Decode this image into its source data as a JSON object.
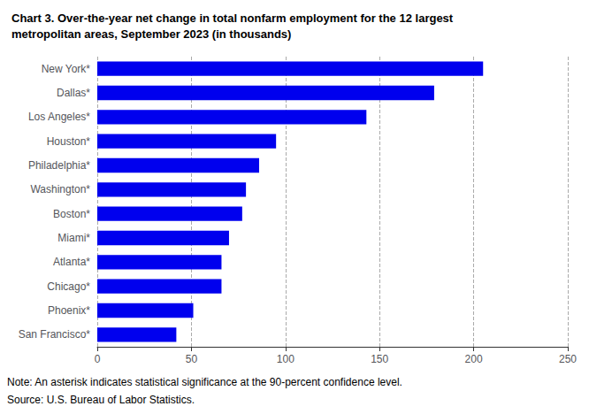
{
  "chart_data": {
    "type": "bar",
    "orientation": "horizontal",
    "title": "Chart 3. Over-the-year net change in total nonfarm employment for the 12 largest\nmetropolitan areas, September 2023 (in thousands)",
    "categories": [
      "New York*",
      "Dallas*",
      "Los Angeles*",
      "Houston*",
      "Philadelphia*",
      "Washington*",
      "Boston*",
      "Miami*",
      "Atlanta*",
      "Chicago*",
      "Phoenix*",
      "San Francisco*"
    ],
    "values": [
      205,
      179,
      143,
      95,
      86,
      79,
      77,
      70,
      66,
      66,
      51,
      42
    ],
    "color": "#0000ee",
    "xlim": [
      0,
      250
    ],
    "xticks": [
      0,
      50,
      100,
      150,
      200,
      250
    ],
    "grid": true,
    "annotations": [
      "Note: An asterisk indicates statistical significance at the 90-percent confidence level.",
      "Source: U.S. Bureau of Labor Statistics."
    ]
  }
}
